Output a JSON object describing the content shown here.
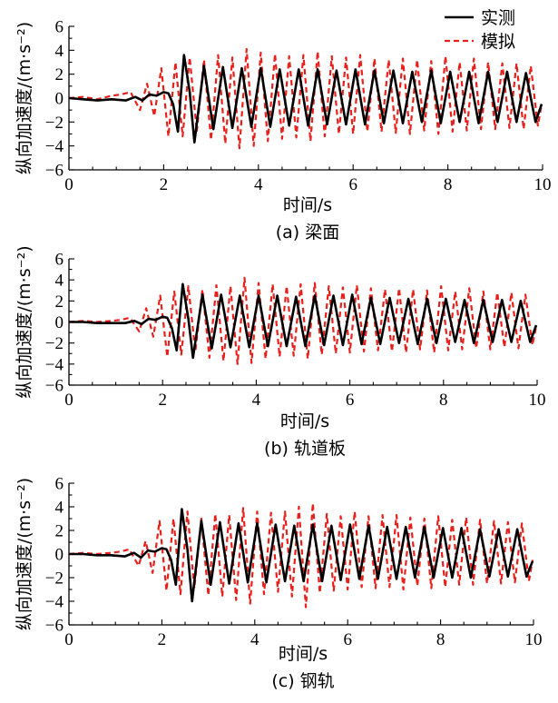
{
  "legend": {
    "measured": "实测",
    "simulated": "模拟"
  },
  "colors": {
    "measured": "#000000",
    "simulated": "#e8201b"
  },
  "chart_data": [
    {
      "type": "line",
      "caption": "(a) 梁面",
      "xlabel": "时间/s",
      "ylabel": "纵向加速度/(m·s⁻²)",
      "xlim": [
        0,
        10
      ],
      "ylim": [
        -6,
        6
      ],
      "xticks": [
        0,
        2,
        4,
        6,
        8,
        10
      ],
      "yticks": [
        -6,
        -4,
        -2,
        0,
        2,
        4,
        6
      ],
      "legend_position": "top-right",
      "series": [
        {
          "name": "实测",
          "x": [
            0,
            0.3,
            0.6,
            0.9,
            1.2,
            1.4,
            1.55,
            1.7,
            1.85,
            2.0,
            2.1,
            2.2,
            2.3,
            2.43,
            2.55,
            2.65,
            2.85,
            3.05,
            3.25,
            3.45,
            3.65,
            3.85,
            4.05,
            4.25,
            4.45,
            4.65,
            4.85,
            5.05,
            5.25,
            5.45,
            5.65,
            5.85,
            6.05,
            6.25,
            6.45,
            6.65,
            6.85,
            7.05,
            7.25,
            7.45,
            7.65,
            7.85,
            8.05,
            8.25,
            8.45,
            8.65,
            8.85,
            9.05,
            9.25,
            9.45,
            9.65,
            9.85,
            9.98
          ],
          "y": [
            0,
            -0.1,
            -0.2,
            -0.1,
            -0.2,
            0.1,
            -0.2,
            0.3,
            0.2,
            0.5,
            0.4,
            -0.5,
            -2.8,
            3.6,
            0.5,
            -3.7,
            2.7,
            -2.6,
            2.6,
            -2.5,
            2.5,
            -2.4,
            2.5,
            -2.4,
            2.4,
            -2.3,
            2.4,
            -2.3,
            2.4,
            -2.2,
            2.3,
            -2.2,
            2.4,
            -2.2,
            2.3,
            -2.1,
            2.3,
            -2.1,
            2.2,
            -2.0,
            2.3,
            -2.1,
            2.2,
            -2.0,
            2.2,
            -2.1,
            2.2,
            -2.0,
            2.2,
            -2.0,
            2.1,
            -2.0,
            -0.5
          ]
        },
        {
          "name": "模拟",
          "x": [
            0,
            0.3,
            0.6,
            0.9,
            1.1,
            1.3,
            1.5,
            1.65,
            1.8,
            1.95,
            2.1,
            2.25,
            2.4,
            2.55,
            2.7,
            2.85,
            3.0,
            3.15,
            3.3,
            3.45,
            3.6,
            3.75,
            3.9,
            4.05,
            4.2,
            4.35,
            4.5,
            4.65,
            4.8,
            4.95,
            5.1,
            5.25,
            5.4,
            5.55,
            5.7,
            5.85,
            6.0,
            6.15,
            6.3,
            6.45,
            6.6,
            6.75,
            6.9,
            7.05,
            7.2,
            7.35,
            7.5,
            7.65,
            7.8,
            7.95,
            8.1,
            8.25,
            8.4,
            8.55,
            8.7,
            8.85,
            9.0,
            9.15,
            9.3,
            9.45,
            9.6,
            9.75,
            9.9,
            9.98
          ],
          "y": [
            0,
            0.1,
            -0.1,
            0.2,
            0.3,
            0.5,
            -1.0,
            1.2,
            -1.5,
            2.5,
            -3.2,
            3.0,
            -3.2,
            3.4,
            -2.8,
            3.2,
            -3.5,
            3.6,
            -3.8,
            3.4,
            -4.2,
            4.1,
            -4.0,
            3.8,
            -3.6,
            3.7,
            -3.4,
            3.5,
            -3.3,
            3.6,
            -3.6,
            3.9,
            -3.2,
            3.5,
            -3.0,
            3.4,
            -3.0,
            3.6,
            -2.8,
            3.3,
            -2.8,
            3.2,
            -2.9,
            3.3,
            -3.0,
            3.2,
            -2.7,
            3.1,
            -3.0,
            3.5,
            -2.8,
            3.0,
            -2.7,
            3.3,
            -2.6,
            3.0,
            -2.6,
            2.9,
            -2.5,
            2.9,
            -2.6,
            2.7,
            -2.3,
            -0.5
          ]
        }
      ]
    },
    {
      "type": "line",
      "caption": "(b) 轨道板",
      "xlabel": "时间/s",
      "ylabel": "纵向加速度/(m·s⁻²)",
      "xlim": [
        0,
        10
      ],
      "ylim": [
        -6,
        6
      ],
      "xticks": [
        0,
        2,
        4,
        6,
        8,
        10
      ],
      "yticks": [
        -6,
        -4,
        -2,
        0,
        2,
        4,
        6
      ],
      "legend_position": "none",
      "series": [
        {
          "name": "实测",
          "x": [
            0,
            0.3,
            0.6,
            0.9,
            1.2,
            1.4,
            1.55,
            1.7,
            1.85,
            2.0,
            2.1,
            2.2,
            2.3,
            2.43,
            2.55,
            2.65,
            2.85,
            3.05,
            3.25,
            3.45,
            3.65,
            3.85,
            4.05,
            4.25,
            4.45,
            4.65,
            4.85,
            5.05,
            5.25,
            5.45,
            5.65,
            5.85,
            6.05,
            6.25,
            6.45,
            6.65,
            6.85,
            7.05,
            7.25,
            7.45,
            7.65,
            7.85,
            8.05,
            8.25,
            8.45,
            8.65,
            8.85,
            9.05,
            9.25,
            9.45,
            9.65,
            9.85,
            9.98
          ],
          "y": [
            0,
            0,
            -0.1,
            -0.1,
            -0.1,
            0.1,
            -0.2,
            0.3,
            0.2,
            0.5,
            0.4,
            -0.6,
            -2.7,
            3.6,
            0.3,
            -3.4,
            2.6,
            -2.5,
            2.6,
            -2.4,
            2.5,
            -2.4,
            2.5,
            -2.3,
            2.5,
            -2.3,
            2.4,
            -2.3,
            2.5,
            -2.2,
            2.5,
            -2.2,
            2.6,
            -2.1,
            2.3,
            -2.1,
            2.3,
            -2.0,
            2.2,
            -2.1,
            2.2,
            -2.0,
            2.2,
            -1.9,
            2.1,
            -2.0,
            2.1,
            -1.9,
            2.1,
            -1.9,
            2.0,
            -1.9,
            -0.3
          ]
        },
        {
          "name": "模拟",
          "x": [
            0,
            0.3,
            0.6,
            0.9,
            1.1,
            1.3,
            1.5,
            1.65,
            1.8,
            1.95,
            2.1,
            2.25,
            2.4,
            2.55,
            2.7,
            2.85,
            3.0,
            3.15,
            3.3,
            3.45,
            3.6,
            3.75,
            3.9,
            4.05,
            4.2,
            4.35,
            4.5,
            4.65,
            4.8,
            4.95,
            5.1,
            5.25,
            5.4,
            5.55,
            5.7,
            5.85,
            6.0,
            6.15,
            6.3,
            6.45,
            6.6,
            6.75,
            6.9,
            7.05,
            7.2,
            7.35,
            7.5,
            7.65,
            7.8,
            7.95,
            8.1,
            8.25,
            8.4,
            8.55,
            8.7,
            8.85,
            9.0,
            9.15,
            9.3,
            9.45,
            9.6,
            9.75,
            9.9,
            9.98
          ],
          "y": [
            0,
            0.1,
            0,
            0.1,
            0.2,
            0.4,
            -0.9,
            1.3,
            -1.4,
            2.5,
            -3.3,
            2.9,
            -3.1,
            3.4,
            -2.8,
            3.1,
            -3.4,
            3.5,
            -3.7,
            3.4,
            -4.0,
            4.2,
            -3.9,
            3.7,
            -3.5,
            3.6,
            -3.3,
            3.4,
            -3.2,
            3.6,
            -3.5,
            3.7,
            -3.1,
            3.4,
            -3.0,
            3.3,
            -2.9,
            3.5,
            -2.8,
            3.2,
            -2.7,
            3.1,
            -2.8,
            3.2,
            -2.9,
            3.1,
            -2.6,
            3.0,
            -2.9,
            3.4,
            -2.7,
            2.9,
            -2.6,
            3.2,
            -2.5,
            2.9,
            -2.6,
            2.8,
            -2.4,
            2.8,
            -2.5,
            2.6,
            -2.2,
            -0.4
          ]
        }
      ]
    },
    {
      "type": "line",
      "caption": "(c) 钢轨",
      "xlabel": "时间/s",
      "ylabel": "纵向加速度/(m·s⁻²)",
      "xlim": [
        0,
        10
      ],
      "ylim": [
        -6,
        6
      ],
      "xticks": [
        0,
        2,
        4,
        6,
        8,
        10
      ],
      "yticks": [
        -6,
        -4,
        -2,
        0,
        2,
        4,
        6
      ],
      "legend_position": "none",
      "series": [
        {
          "name": "实测",
          "x": [
            0,
            0.3,
            0.6,
            0.9,
            1.2,
            1.4,
            1.55,
            1.7,
            1.85,
            2.0,
            2.1,
            2.2,
            2.3,
            2.43,
            2.55,
            2.65,
            2.85,
            3.05,
            3.25,
            3.45,
            3.65,
            3.85,
            4.05,
            4.25,
            4.45,
            4.65,
            4.85,
            5.05,
            5.25,
            5.45,
            5.65,
            5.85,
            6.05,
            6.25,
            6.45,
            6.65,
            6.85,
            7.05,
            7.25,
            7.45,
            7.65,
            7.85,
            8.05,
            8.25,
            8.45,
            8.65,
            8.85,
            9.05,
            9.25,
            9.45,
            9.65,
            9.85,
            9.98
          ],
          "y": [
            0,
            0,
            -0.1,
            -0.1,
            -0.2,
            0.1,
            -0.3,
            0.3,
            0.2,
            0.5,
            0.4,
            -0.5,
            -2.6,
            3.8,
            0.4,
            -4.0,
            2.8,
            -2.6,
            2.7,
            -2.5,
            2.6,
            -2.4,
            2.6,
            -2.4,
            2.5,
            -2.3,
            2.4,
            -2.3,
            2.5,
            -2.3,
            2.4,
            -2.2,
            2.5,
            -2.1,
            2.4,
            -2.1,
            2.3,
            -2.1,
            2.3,
            -2.0,
            2.3,
            -2.0,
            2.2,
            -2.0,
            2.2,
            -2.0,
            2.1,
            -1.9,
            2.1,
            -1.9,
            2.1,
            -1.9,
            -0.6
          ]
        },
        {
          "name": "模拟",
          "x": [
            0,
            0.3,
            0.6,
            0.9,
            1.1,
            1.3,
            1.5,
            1.65,
            1.8,
            1.95,
            2.1,
            2.25,
            2.4,
            2.55,
            2.7,
            2.85,
            3.0,
            3.15,
            3.3,
            3.45,
            3.6,
            3.75,
            3.9,
            4.05,
            4.2,
            4.35,
            4.5,
            4.65,
            4.8,
            4.95,
            5.1,
            5.25,
            5.4,
            5.55,
            5.7,
            5.85,
            6.0,
            6.15,
            6.3,
            6.45,
            6.6,
            6.75,
            6.9,
            7.05,
            7.2,
            7.35,
            7.5,
            7.65,
            7.8,
            7.95,
            8.1,
            8.25,
            8.4,
            8.55,
            8.7,
            8.85,
            9.0,
            9.15,
            9.3,
            9.45,
            9.6,
            9.75,
            9.9,
            9.98
          ],
          "y": [
            0,
            0.1,
            0,
            0.1,
            0.2,
            0.4,
            -1.0,
            1.1,
            -1.6,
            2.8,
            -3.1,
            3.0,
            -3.4,
            3.6,
            -2.9,
            3.0,
            -3.5,
            3.4,
            -3.6,
            3.3,
            -3.9,
            3.9,
            -4.2,
            3.6,
            -3.4,
            3.5,
            -3.2,
            3.6,
            -3.6,
            4.0,
            -4.5,
            4.3,
            -3.3,
            3.4,
            -3.1,
            3.2,
            -3.0,
            3.6,
            -2.8,
            3.2,
            -2.9,
            3.3,
            -2.8,
            3.3,
            -3.0,
            3.1,
            -2.7,
            3.0,
            -2.9,
            3.2,
            -2.8,
            2.9,
            -2.6,
            3.1,
            -2.6,
            2.9,
            -2.5,
            2.8,
            -2.5,
            2.7,
            -2.4,
            2.6,
            -2.3,
            -0.5
          ]
        }
      ]
    }
  ]
}
